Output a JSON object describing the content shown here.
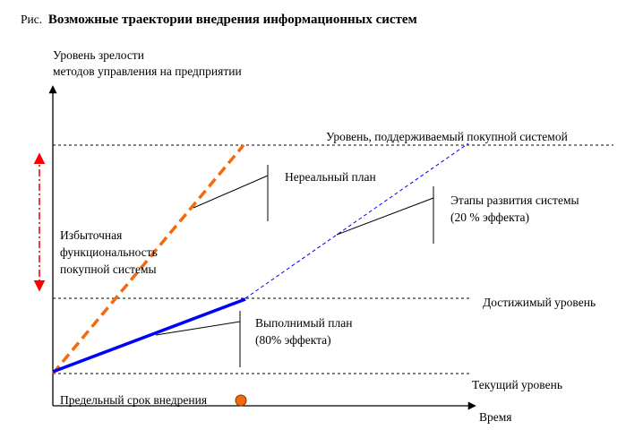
{
  "title": {
    "prefix": "Рис.",
    "text": "Возможные траектории внедрения информационных систем"
  },
  "axes": {
    "y_label_line1": "Уровень зрелости",
    "y_label_line2": "методов управления на предприятии",
    "x_label": "Время"
  },
  "levels": {
    "system": "Уровень, поддерживаемый покупной системой",
    "achievable": "Достижимый уровень",
    "current": "Текущий уровень"
  },
  "annotations": {
    "unreal_plan": "Нереальный план",
    "stages_line1": "Этапы развития системы",
    "stages_line2": "(20 % эффекта)",
    "feasible_line1": "Выполнимый план",
    "feasible_line2": "(80% эффекта)",
    "excess_line1": "Избыточная",
    "excess_line2": "функциональность",
    "excess_line3": "покупной системы",
    "deadline": "Предельный срок внедрения"
  },
  "colors": {
    "feasible_plan": "#0000ff",
    "unreal_plan": "#f26a10",
    "excess_arrow": "#ff0000",
    "deadline_marker": "#f26a10"
  }
}
